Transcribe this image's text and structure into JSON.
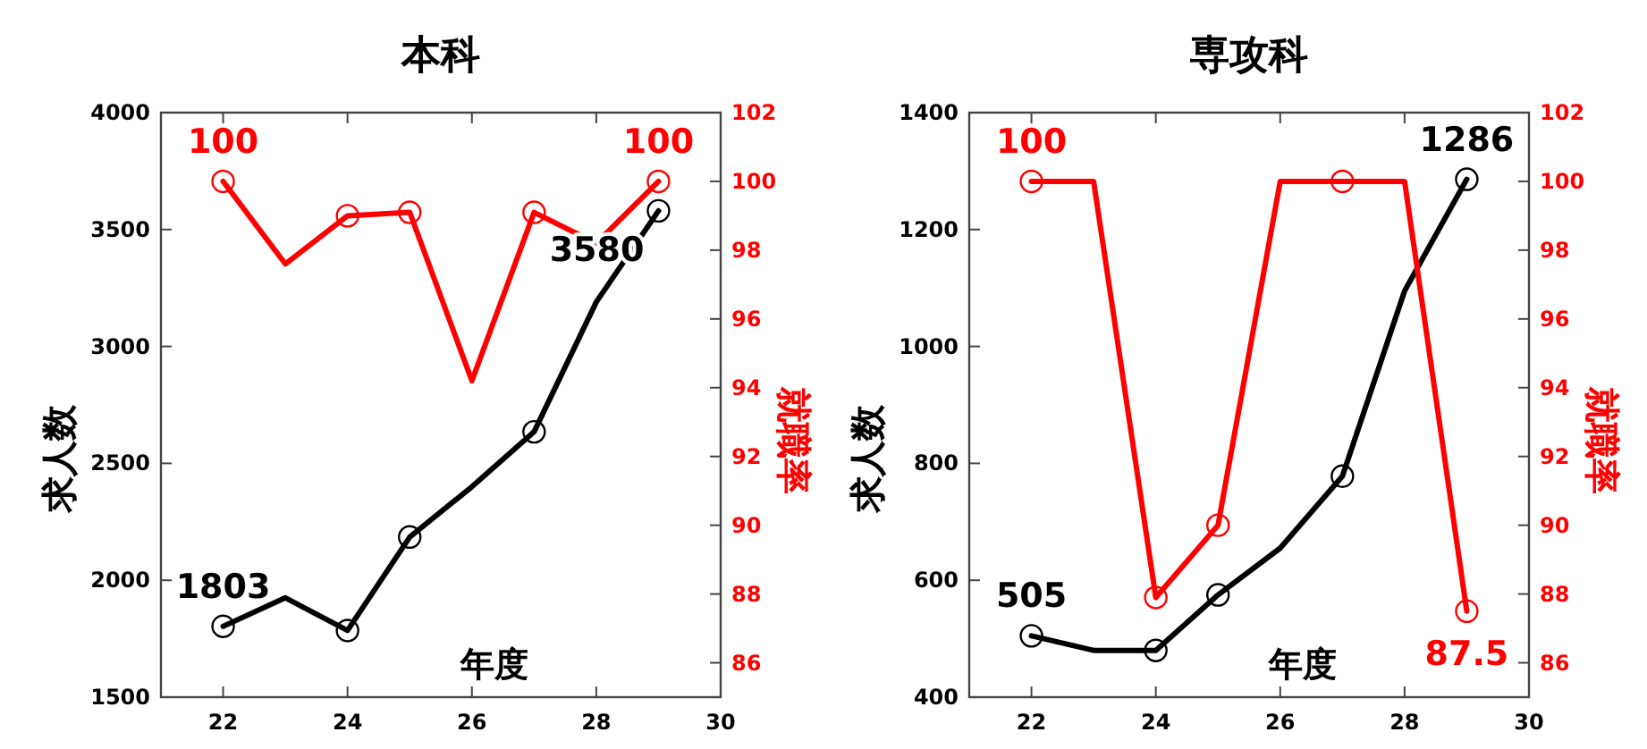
{
  "chart_data": [
    {
      "type": "line",
      "title": "本科",
      "xlabel": "年度",
      "ylabel": "求人数",
      "y2label": "就職率",
      "x": [
        22,
        23,
        24,
        25,
        26,
        27,
        28,
        29
      ],
      "xlim": [
        21,
        30
      ],
      "xticks": [
        22,
        24,
        26,
        28,
        30
      ],
      "ylim": [
        1500,
        4000
      ],
      "yticks": [
        1500,
        2000,
        2500,
        3000,
        3500,
        4000
      ],
      "y2lim": [
        85,
        102
      ],
      "y2ticks": [
        86,
        88,
        90,
        92,
        94,
        96,
        98,
        100,
        102
      ],
      "grid": false,
      "marker": "none",
      "line_style": "solid",
      "series": [
        {
          "color": "#000000",
          "values": [
            1803,
            1925,
            1785,
            2185,
            2400,
            2635,
            3190,
            3580
          ],
          "value_labels": [
            "1803",
            null,
            null,
            null,
            null,
            null,
            null,
            "3580"
          ]
        },
        {
          "color": "#ff0000",
          "axis": "y2",
          "values": [
            100,
            97.6,
            99.0,
            99.1,
            94.2,
            99.1,
            98.2,
            100
          ],
          "value_labels": [
            "100",
            null,
            null,
            null,
            null,
            null,
            null,
            "100"
          ]
        },
        {
          "type": "scatter",
          "marker": "circle",
          "color": "#000000",
          "x": [
            22,
            24,
            25,
            27,
            29
          ],
          "values": [
            1803,
            1785,
            2185,
            2635,
            3580
          ]
        },
        {
          "type": "scatter",
          "marker": "circle",
          "color": "#ff0000",
          "axis": "y2",
          "x": [
            22,
            24,
            25,
            27,
            29
          ],
          "values": [
            100,
            99.0,
            99.1,
            99.1,
            100
          ]
        }
      ]
    },
    {
      "type": "line",
      "title": "専攻科",
      "xlabel": "年度",
      "ylabel": "求人数",
      "y2label": "就職率",
      "x": [
        22,
        23,
        24,
        25,
        26,
        27,
        28,
        29
      ],
      "xlim": [
        21,
        30
      ],
      "xticks": [
        22,
        24,
        26,
        28,
        30
      ],
      "ylim": [
        400,
        1400
      ],
      "yticks": [
        400,
        600,
        800,
        1000,
        1200,
        1400
      ],
      "y2lim": [
        85,
        102
      ],
      "y2ticks": [
        86,
        88,
        90,
        92,
        94,
        96,
        98,
        100,
        102
      ],
      "grid": false,
      "marker": "none",
      "line_style": "solid",
      "series": [
        {
          "color": "#000000",
          "values": [
            505,
            480,
            480,
            575,
            655,
            778,
            1095,
            1286
          ],
          "value_labels": [
            "505",
            null,
            null,
            null,
            null,
            null,
            null,
            "1286"
          ]
        },
        {
          "color": "#ff0000",
          "axis": "y2",
          "values": [
            100,
            100,
            87.9,
            90.0,
            100,
            100,
            100,
            87.5
          ],
          "value_labels": [
            "100",
            null,
            null,
            null,
            null,
            null,
            null,
            "87.5"
          ]
        },
        {
          "type": "scatter",
          "marker": "circle",
          "color": "#000000",
          "x": [
            22,
            24,
            25,
            27,
            29
          ],
          "values": [
            505,
            480,
            575,
            778,
            1286
          ]
        },
        {
          "type": "scatter",
          "marker": "circle",
          "color": "#ff0000",
          "axis": "y2",
          "x": [
            22,
            24,
            25,
            27,
            29
          ],
          "values": [
            100,
            87.9,
            90.0,
            100,
            87.5
          ]
        }
      ]
    }
  ]
}
